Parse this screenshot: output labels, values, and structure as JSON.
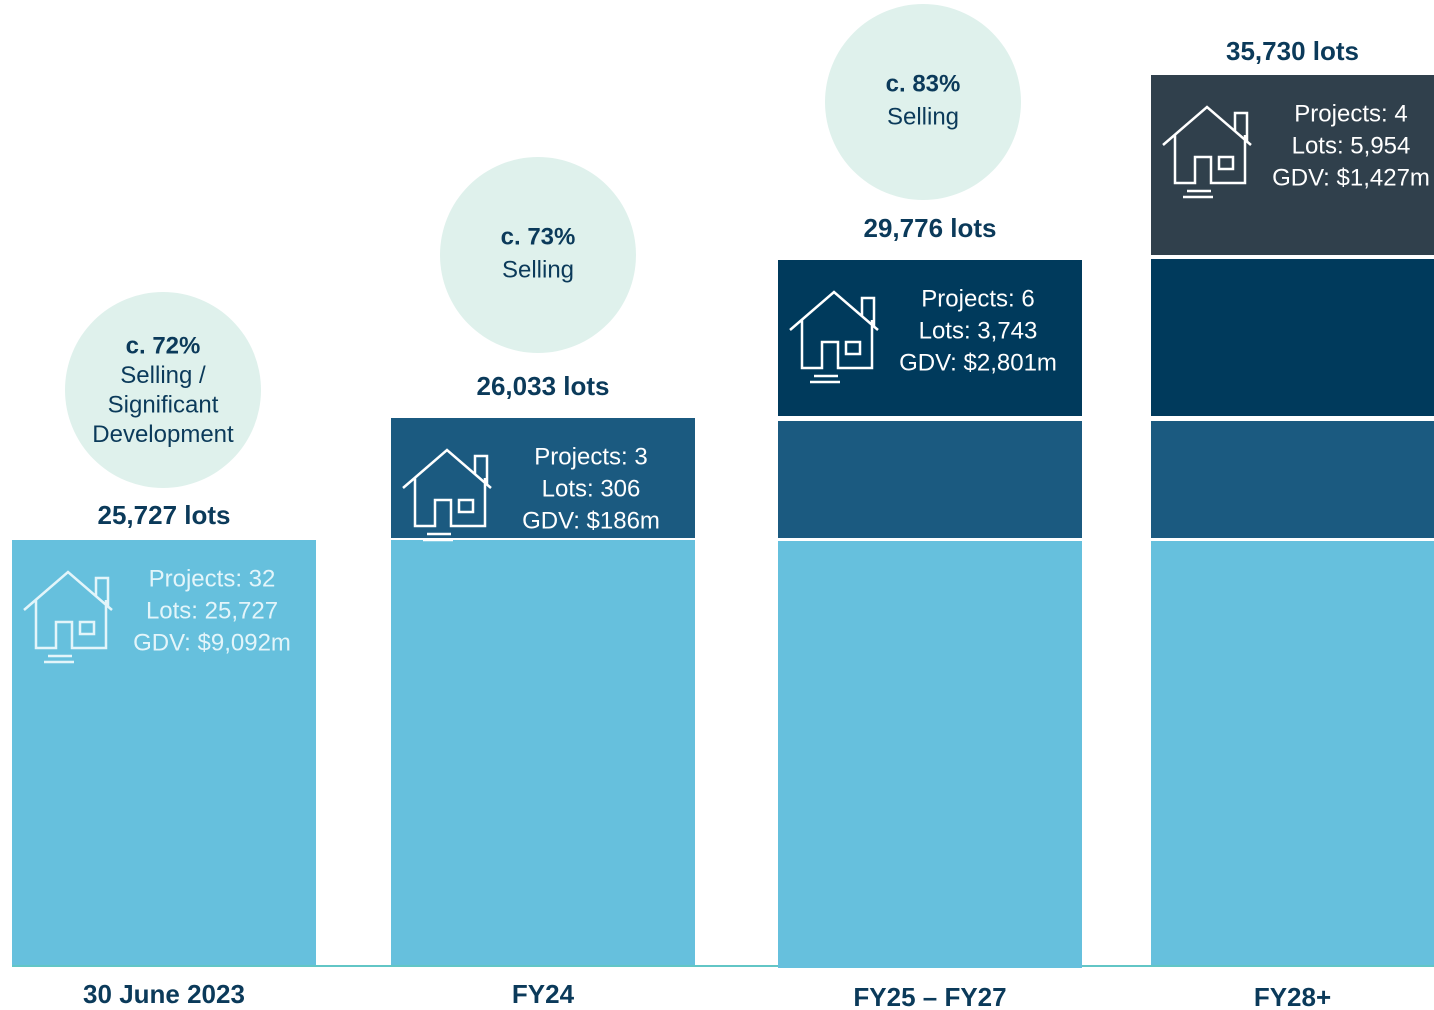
{
  "columns": [
    {
      "label": "30 June 2023",
      "total": "25,727 lots",
      "bubble": {
        "percent": "c. 72%",
        "lines": [
          "Selling /",
          "Significant",
          "Development"
        ]
      },
      "info": [
        "Projects: 32",
        "Lots: 25,727",
        "GDV: $9,092m"
      ]
    },
    {
      "label": "FY24",
      "total": "26,033 lots",
      "bubble": {
        "percent": "c. 73%",
        "lines": [
          "Selling"
        ]
      },
      "info": [
        "Projects: 3",
        "Lots: 306",
        "GDV: $186m"
      ]
    },
    {
      "label": "FY25 – FY27",
      "total": "29,776 lots",
      "bubble": {
        "percent": "c. 83%",
        "lines": [
          "Selling"
        ]
      },
      "info": [
        "Projects: 6",
        "Lots: 3,743",
        "GDV: $2,801m"
      ]
    },
    {
      "label": "FY28+",
      "total": "35,730 lots",
      "info": [
        "Projects: 4",
        "Lots: 5,954",
        "GDV: $1,427m"
      ]
    }
  ]
}
